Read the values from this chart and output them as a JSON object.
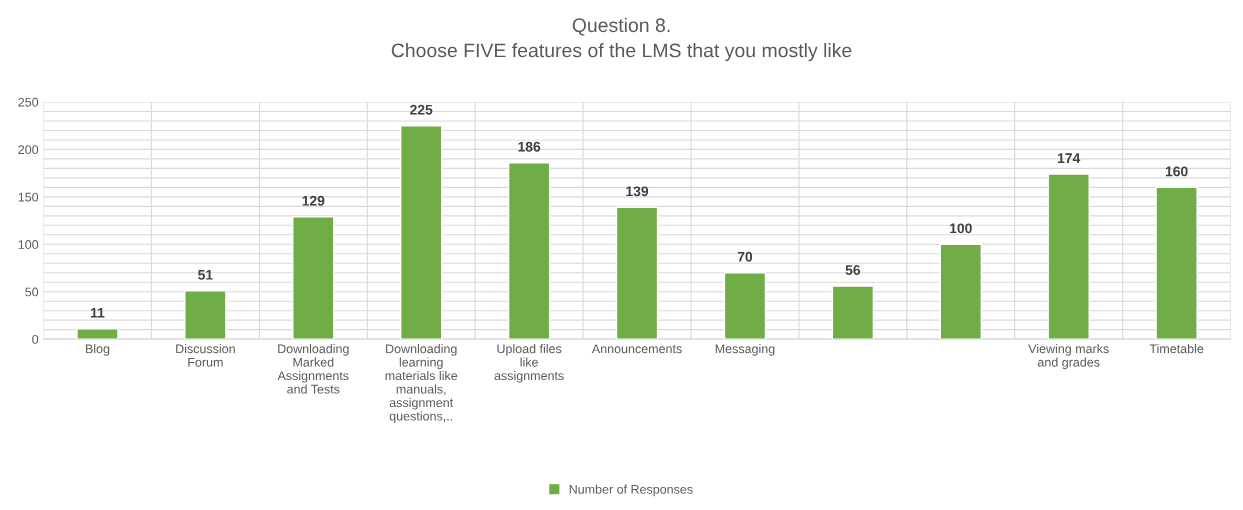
{
  "chart_data": {
    "type": "bar",
    "title": "Question 8.\nChoose FIVE features of the LMS that you mostly like",
    "categories": [
      "Blog",
      "Discussion Forum",
      "Downloading Marked Assignments and Tests",
      "Downloading learning materials like manuals, assignment questions,..",
      "Upload files like assignments",
      "Announcements",
      "Messaging",
      null,
      null,
      "Viewing marks and grades",
      "Timetable"
    ],
    "series": [
      {
        "name": "Number of Responses",
        "color": "#70ad47",
        "values": [
          11,
          51,
          129,
          225,
          186,
          139,
          70,
          56,
          100,
          174,
          160
        ]
      }
    ],
    "ylim": [
      0,
      250
    ],
    "yticks": [
      0,
      50,
      100,
      150,
      200,
      250
    ],
    "grid": true,
    "legend": "bottom",
    "data_labels": true
  }
}
